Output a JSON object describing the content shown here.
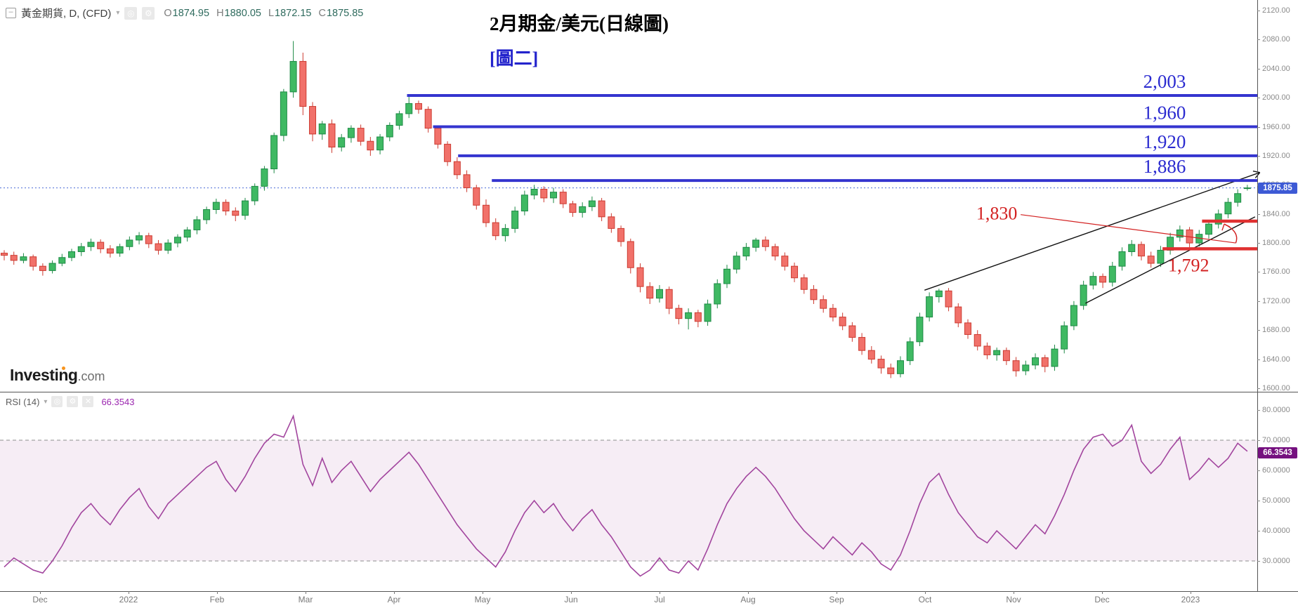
{
  "legend": {
    "symbol": "黃金期貨, D, (CFD)",
    "o_label": "O",
    "o": "1874.95",
    "h_label": "H",
    "h": "1880.05",
    "l_label": "L",
    "l": "1872.15",
    "c_label": "C",
    "c": "1875.85"
  },
  "title": {
    "line1": "2月期金/美元(日線圖)",
    "line2": "[圖二]"
  },
  "watermark": {
    "name": "Investing",
    "tld": ".com"
  },
  "rsi_legend": {
    "label": "RSI (14)",
    "value": "66.3543"
  },
  "badges": {
    "price": "1875.85",
    "rsi": "66.3543"
  },
  "price_axis": {
    "ticks": [
      "2120.00",
      "2080.00",
      "2040.00",
      "2000.00",
      "1960.00",
      "1920.00",
      "1880.00",
      "1840.00",
      "1800.00",
      "1760.00",
      "1720.00",
      "1680.00",
      "1640.00",
      "1600.00"
    ]
  },
  "rsi_axis": {
    "ticks": [
      "80.0000",
      "70.0000",
      "60.0000",
      "50.0000",
      "40.0000",
      "30.0000"
    ]
  },
  "time_axis": {
    "labels": [
      "Dec",
      "2022",
      "Feb",
      "Mar",
      "Apr",
      "May",
      "Jun",
      "Jul",
      "Aug",
      "Sep",
      "Oct",
      "Nov",
      "Dec",
      "2023"
    ]
  },
  "colors": {
    "candle_up_fill": "#3fb963",
    "candle_up_stroke": "#1e8a46",
    "candle_down_fill": "#f1716a",
    "candle_down_stroke": "#cc3b31",
    "level_blue": "#3434cf",
    "level_label_blue": "#2b2bd0",
    "level_red": "#e03131",
    "level_label_red": "#d32222",
    "trendline": "#111111",
    "current_price_line": "#4a6bd8",
    "price_badge_bg": "#3d5ad5",
    "rsi_line": "#a2459e",
    "rsi_badge_bg": "#75107f",
    "rsi_band_fill": "rgba(166,77,160,0.10)",
    "band_dash": "#8e8e8e",
    "axis_text": "#8a8a8a",
    "axis_line": "#555555",
    "ohlc_value": "#2f6b5e",
    "legend_text": "#3f3f3f",
    "subtitle_text": "#2323cc",
    "logo_dot": "#f7941d"
  },
  "chart_data": [
    {
      "type": "candlestick",
      "name": "黃金期貨 (CFD), Daily — 2月期金/美元",
      "ylim": [
        1600,
        2120
      ],
      "y_tick_interval": 40,
      "current_price": 1875.85,
      "ohlc": [
        [
          1786,
          1790,
          1776,
          1783
        ],
        [
          1783,
          1788,
          1770,
          1776
        ],
        [
          1776,
          1786,
          1772,
          1781
        ],
        [
          1781,
          1784,
          1762,
          1768
        ],
        [
          1768,
          1772,
          1755,
          1762
        ],
        [
          1762,
          1776,
          1758,
          1772
        ],
        [
          1772,
          1785,
          1768,
          1780
        ],
        [
          1780,
          1792,
          1775,
          1788
        ],
        [
          1788,
          1800,
          1782,
          1795
        ],
        [
          1795,
          1806,
          1789,
          1801
        ],
        [
          1801,
          1805,
          1786,
          1792
        ],
        [
          1792,
          1797,
          1780,
          1786
        ],
        [
          1786,
          1799,
          1781,
          1795
        ],
        [
          1795,
          1809,
          1790,
          1804
        ],
        [
          1804,
          1815,
          1798,
          1810
        ],
        [
          1810,
          1814,
          1793,
          1799
        ],
        [
          1799,
          1804,
          1784,
          1790
        ],
        [
          1790,
          1805,
          1785,
          1800
        ],
        [
          1800,
          1812,
          1794,
          1808
        ],
        [
          1808,
          1822,
          1802,
          1818
        ],
        [
          1818,
          1837,
          1812,
          1832
        ],
        [
          1832,
          1850,
          1826,
          1846
        ],
        [
          1846,
          1861,
          1840,
          1856
        ],
        [
          1856,
          1860,
          1838,
          1844
        ],
        [
          1844,
          1849,
          1830,
          1838
        ],
        [
          1838,
          1862,
          1832,
          1858
        ],
        [
          1858,
          1882,
          1852,
          1878
        ],
        [
          1878,
          1906,
          1872,
          1902
        ],
        [
          1902,
          1952,
          1896,
          1948
        ],
        [
          1948,
          2012,
          1940,
          2008
        ],
        [
          2008,
          2078,
          2000,
          2050
        ],
        [
          2050,
          2062,
          1976,
          1988
        ],
        [
          1988,
          1994,
          1940,
          1950
        ],
        [
          1950,
          1968,
          1942,
          1964
        ],
        [
          1964,
          1970,
          1924,
          1932
        ],
        [
          1932,
          1950,
          1926,
          1945
        ],
        [
          1945,
          1962,
          1938,
          1958
        ],
        [
          1958,
          1963,
          1934,
          1940
        ],
        [
          1940,
          1946,
          1920,
          1928
        ],
        [
          1928,
          1950,
          1922,
          1946
        ],
        [
          1946,
          1966,
          1940,
          1962
        ],
        [
          1962,
          1982,
          1956,
          1978
        ],
        [
          1978,
          2001,
          1972,
          1992
        ],
        [
          1992,
          1996,
          1978,
          1984
        ],
        [
          1984,
          1988,
          1952,
          1958
        ],
        [
          1958,
          1962,
          1930,
          1936
        ],
        [
          1936,
          1940,
          1906,
          1912
        ],
        [
          1912,
          1918,
          1888,
          1894
        ],
        [
          1894,
          1900,
          1870,
          1876
        ],
        [
          1876,
          1880,
          1846,
          1852
        ],
        [
          1852,
          1860,
          1822,
          1828
        ],
        [
          1828,
          1834,
          1804,
          1810
        ],
        [
          1810,
          1826,
          1802,
          1820
        ],
        [
          1820,
          1850,
          1814,
          1844
        ],
        [
          1844,
          1872,
          1838,
          1866
        ],
        [
          1866,
          1880,
          1860,
          1874
        ],
        [
          1874,
          1878,
          1856,
          1862
        ],
        [
          1862,
          1876,
          1855,
          1870
        ],
        [
          1870,
          1874,
          1848,
          1854
        ],
        [
          1854,
          1858,
          1836,
          1842
        ],
        [
          1842,
          1856,
          1835,
          1850
        ],
        [
          1850,
          1864,
          1844,
          1858
        ],
        [
          1858,
          1862,
          1830,
          1836
        ],
        [
          1836,
          1841,
          1814,
          1820
        ],
        [
          1820,
          1824,
          1795,
          1802
        ],
        [
          1802,
          1806,
          1758,
          1766
        ],
        [
          1766,
          1772,
          1732,
          1740
        ],
        [
          1740,
          1746,
          1716,
          1724
        ],
        [
          1724,
          1742,
          1718,
          1736
        ],
        [
          1736,
          1740,
          1702,
          1710
        ],
        [
          1710,
          1715,
          1688,
          1696
        ],
        [
          1696,
          1710,
          1681,
          1704
        ],
        [
          1704,
          1708,
          1684,
          1692
        ],
        [
          1692,
          1722,
          1686,
          1716
        ],
        [
          1716,
          1750,
          1710,
          1744
        ],
        [
          1744,
          1770,
          1738,
          1764
        ],
        [
          1764,
          1788,
          1758,
          1782
        ],
        [
          1782,
          1800,
          1776,
          1794
        ],
        [
          1794,
          1807,
          1788,
          1804
        ],
        [
          1804,
          1809,
          1789,
          1795
        ],
        [
          1795,
          1799,
          1776,
          1782
        ],
        [
          1782,
          1787,
          1762,
          1768
        ],
        [
          1768,
          1773,
          1746,
          1752
        ],
        [
          1752,
          1757,
          1730,
          1736
        ],
        [
          1736,
          1742,
          1716,
          1722
        ],
        [
          1722,
          1728,
          1704,
          1710
        ],
        [
          1710,
          1716,
          1692,
          1698
        ],
        [
          1698,
          1704,
          1680,
          1686
        ],
        [
          1686,
          1691,
          1664,
          1670
        ],
        [
          1670,
          1676,
          1646,
          1652
        ],
        [
          1652,
          1658,
          1634,
          1640
        ],
        [
          1640,
          1645,
          1620,
          1628
        ],
        [
          1628,
          1634,
          1614,
          1620
        ],
        [
          1620,
          1644,
          1615,
          1638
        ],
        [
          1638,
          1670,
          1632,
          1664
        ],
        [
          1664,
          1704,
          1658,
          1698
        ],
        [
          1698,
          1732,
          1692,
          1726
        ],
        [
          1726,
          1737,
          1718,
          1734
        ],
        [
          1734,
          1738,
          1706,
          1712
        ],
        [
          1712,
          1717,
          1684,
          1690
        ],
        [
          1690,
          1695,
          1668,
          1674
        ],
        [
          1674,
          1680,
          1652,
          1658
        ],
        [
          1658,
          1663,
          1640,
          1646
        ],
        [
          1646,
          1656,
          1638,
          1652
        ],
        [
          1652,
          1656,
          1632,
          1638
        ],
        [
          1638,
          1643,
          1616,
          1624
        ],
        [
          1624,
          1638,
          1618,
          1632
        ],
        [
          1632,
          1648,
          1626,
          1642
        ],
        [
          1642,
          1646,
          1622,
          1630
        ],
        [
          1630,
          1660,
          1624,
          1654
        ],
        [
          1654,
          1692,
          1648,
          1686
        ],
        [
          1686,
          1720,
          1680,
          1714
        ],
        [
          1714,
          1748,
          1708,
          1742
        ],
        [
          1742,
          1760,
          1736,
          1754
        ],
        [
          1754,
          1758,
          1738,
          1746
        ],
        [
          1746,
          1774,
          1740,
          1768
        ],
        [
          1768,
          1794,
          1762,
          1788
        ],
        [
          1788,
          1804,
          1782,
          1798
        ],
        [
          1798,
          1802,
          1776,
          1782
        ],
        [
          1782,
          1788,
          1766,
          1772
        ],
        [
          1772,
          1796,
          1767,
          1790
        ],
        [
          1790,
          1814,
          1784,
          1808
        ],
        [
          1808,
          1824,
          1802,
          1818
        ],
        [
          1818,
          1822,
          1794,
          1800
        ],
        [
          1800,
          1818,
          1795,
          1812
        ],
        [
          1812,
          1832,
          1806,
          1826
        ],
        [
          1826,
          1846,
          1820,
          1840
        ],
        [
          1840,
          1862,
          1834,
          1856
        ],
        [
          1856,
          1874,
          1850,
          1868
        ],
        [
          1874.95,
          1880.05,
          1872.15,
          1875.85
        ]
      ],
      "levels": [
        {
          "label": "2,003",
          "value": 2003,
          "color": "blue",
          "from_index": 41.8
        },
        {
          "label": "1,960",
          "value": 1960,
          "color": "blue",
          "from_index": 44.5
        },
        {
          "label": "1,920",
          "value": 1920,
          "color": "blue",
          "from_index": 47.1
        },
        {
          "label": "1,886",
          "value": 1886,
          "color": "blue",
          "from_index": 50.6
        },
        {
          "label": "1,830",
          "value": 1830,
          "color": "red",
          "from_index": 124.3
        },
        {
          "label": "1,792",
          "value": 1792,
          "color": "red",
          "from_index": 120.2
        }
      ],
      "trendlines": [
        {
          "from": {
            "index": 95.5,
            "price": 1735
          },
          "to": {
            "index": 130.3,
            "price": 1897
          },
          "arrow": true
        },
        {
          "from": {
            "index": 112.2,
            "price": 1717
          },
          "to": {
            "index": 129.8,
            "price": 1836
          },
          "arrow": false
        }
      ],
      "annotations": {
        "label_1830_anchor": {
          "index": 103.0,
          "price": 1841
        },
        "leader_end": {
          "index": 127.8,
          "price": 1800
        },
        "arrow_tip": {
          "index": 126.6,
          "price": 1826
        },
        "label_1792_anchor": {
          "index": 122.9,
          "price": 1786
        }
      }
    },
    {
      "type": "line",
      "name": "RSI (14)",
      "ylim": [
        20,
        87
      ],
      "ticks": [
        80,
        70,
        60,
        50,
        40,
        30
      ],
      "overbought": 70,
      "oversold": 30,
      "last_value": 66.3543,
      "values": [
        28,
        31,
        29,
        27,
        26,
        30,
        35,
        41,
        46,
        49,
        45,
        42,
        47,
        51,
        54,
        48,
        44,
        49,
        52,
        55,
        58,
        61,
        63,
        57,
        53,
        58,
        64,
        69,
        72,
        71,
        78,
        62,
        55,
        64,
        56,
        60,
        63,
        58,
        53,
        57,
        60,
        63,
        66,
        62,
        57,
        52,
        47,
        42,
        38,
        34,
        31,
        28,
        33,
        40,
        46,
        50,
        46,
        49,
        44,
        40,
        44,
        47,
        42,
        38,
        33,
        28,
        25,
        27,
        31,
        27,
        26,
        30,
        27,
        34,
        42,
        49,
        54,
        58,
        61,
        58,
        54,
        49,
        44,
        40,
        37,
        34,
        38,
        35,
        32,
        36,
        33,
        29,
        27,
        32,
        40,
        49,
        56,
        59,
        52,
        46,
        42,
        38,
        36,
        40,
        37,
        34,
        38,
        42,
        39,
        45,
        52,
        60,
        67,
        71,
        72,
        68,
        70,
        75,
        63,
        59,
        62,
        67,
        71,
        57,
        60,
        64,
        61,
        64,
        69,
        66.35
      ]
    }
  ]
}
